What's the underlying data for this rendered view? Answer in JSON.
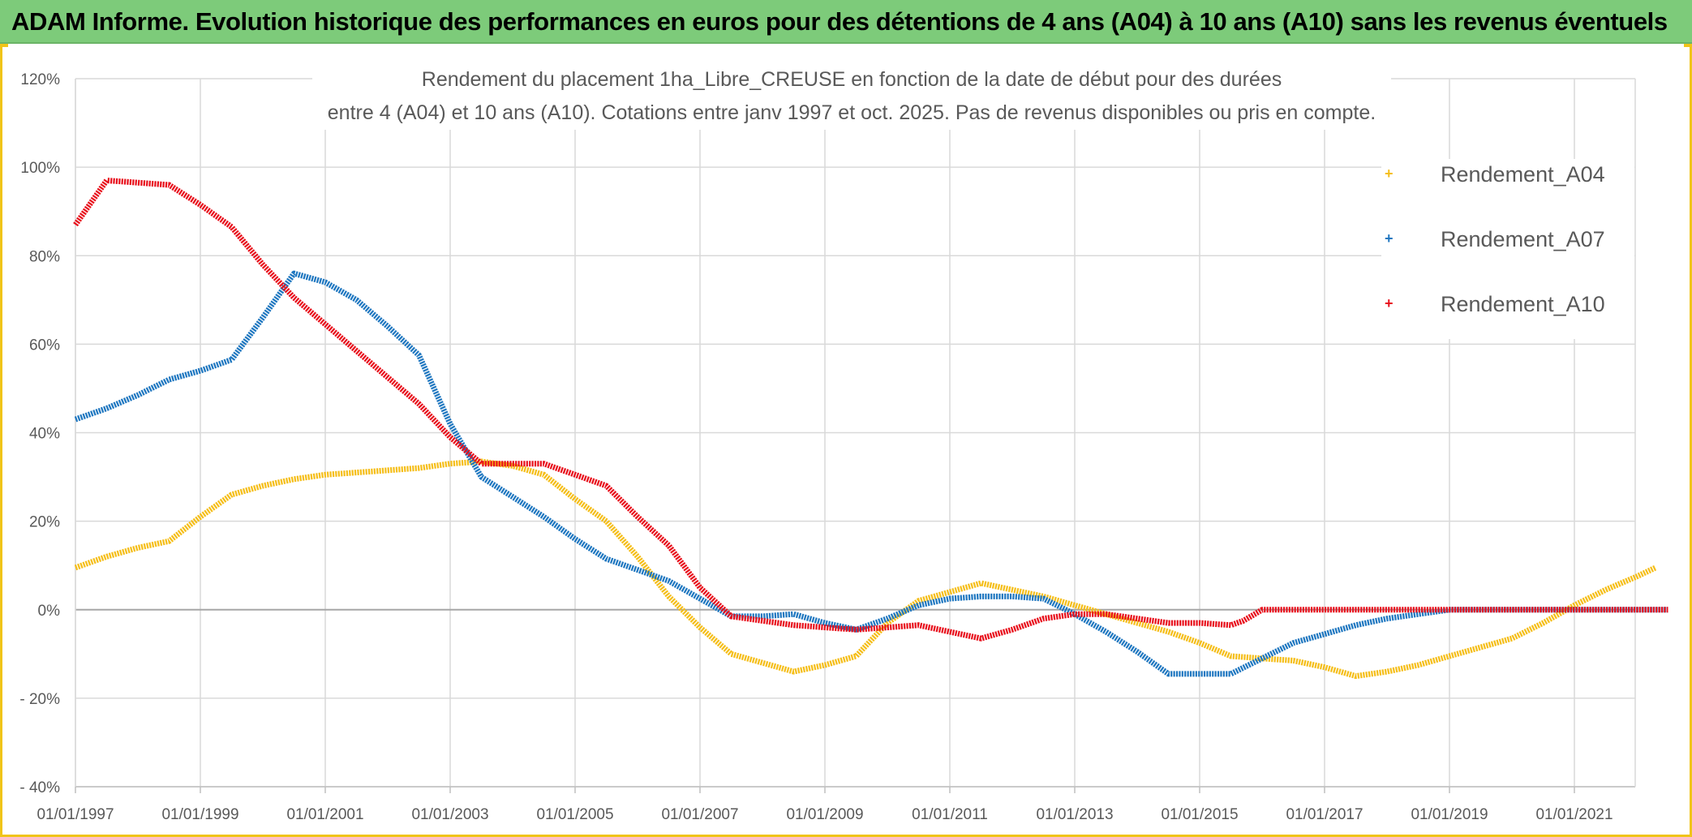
{
  "banner": {
    "title": "ADAM Informe. Evolution historique des performances en euros pour des détentions de 4 ans (A04) à 10 ans (A10) sans les revenus éventuels"
  },
  "chart_data": {
    "type": "line",
    "title_line1": "Rendement du placement 1ha_Libre_CREUSE en fonction de la date de début pour des durées",
    "title_line2": "entre 4 (A04) et 10 ans (A10). Cotations entre janv 1997 et oct. 2025. Pas de revenus disponibles ou pris en compte.",
    "xlim": [
      1997.0,
      2022.5
    ],
    "ylim": [
      -40,
      120
    ],
    "y_ticks": [
      -40,
      -20,
      0,
      20,
      40,
      60,
      80,
      100,
      120
    ],
    "y_tick_labels": [
      "- 40%",
      "- 20%",
      "0%",
      "20%",
      "40%",
      "60%",
      "80%",
      "100%",
      "120%"
    ],
    "x_ticks": [
      1997,
      1999,
      2001,
      2003,
      2005,
      2007,
      2009,
      2011,
      2013,
      2015,
      2017,
      2019,
      2021
    ],
    "x_tick_labels": [
      "01/01/1997",
      "01/01/1999",
      "01/01/2001",
      "01/01/2003",
      "01/01/2005",
      "01/01/2007",
      "01/01/2009",
      "01/01/2011",
      "01/01/2013",
      "01/01/2015",
      "01/01/2017",
      "01/01/2019",
      "01/01/2021"
    ],
    "grid": true,
    "legend_position": "right",
    "series": [
      {
        "name": "Rendement_A04",
        "color": "#f5be19",
        "x": [
          1997.0,
          1997.5,
          1998.0,
          1998.5,
          1999.0,
          1999.5,
          2000.0,
          2000.5,
          2001.0,
          2001.5,
          2002.0,
          2002.5,
          2003.0,
          2003.5,
          2004.0,
          2004.5,
          2005.0,
          2005.5,
          2006.0,
          2006.5,
          2007.0,
          2007.5,
          2008.0,
          2008.5,
          2009.0,
          2009.5,
          2010.0,
          2010.5,
          2011.0,
          2011.5,
          2012.0,
          2012.5,
          2013.0,
          2013.5,
          2014.0,
          2014.5,
          2015.0,
          2015.5,
          2016.0,
          2016.5,
          2017.0,
          2017.5,
          2018.0,
          2018.5,
          2019.0,
          2019.5,
          2020.0,
          2020.5,
          2021.0,
          2021.5,
          2022.0,
          2022.3
        ],
        "y": [
          9.5,
          12,
          14,
          15.5,
          21,
          26,
          28,
          29.5,
          30.5,
          31,
          31.5,
          32,
          33,
          33.5,
          32.5,
          30.5,
          25,
          20,
          12,
          3,
          -4,
          -10,
          -12,
          -14,
          -12.5,
          -10.5,
          -3,
          2,
          4,
          6,
          4.5,
          3,
          1,
          -1,
          -3,
          -5,
          -7.5,
          -10.5,
          -11,
          -11.5,
          -13,
          -15,
          -14,
          -12.5,
          -10.5,
          -8.5,
          -6.5,
          -3,
          1,
          4.5,
          7.5,
          9.5
        ]
      },
      {
        "name": "Rendement_A07",
        "color": "#1f77c0",
        "x": [
          1997.0,
          1997.5,
          1998.0,
          1998.5,
          1999.0,
          1999.5,
          2000.0,
          2000.5,
          2001.0,
          2001.5,
          2002.0,
          2002.5,
          2003.0,
          2003.5,
          2004.0,
          2004.5,
          2005.0,
          2005.5,
          2006.0,
          2006.5,
          2007.0,
          2007.5,
          2008.0,
          2008.5,
          2009.0,
          2009.5,
          2010.0,
          2010.5,
          2011.0,
          2011.5,
          2012.0,
          2012.5,
          2013.0,
          2013.5,
          2014.0,
          2014.5,
          2015.0,
          2015.5,
          2016.0,
          2016.5,
          2017.0,
          2017.5,
          2018.0,
          2018.5,
          2019.0,
          2022.5
        ],
        "y": [
          43,
          45.5,
          48.5,
          52,
          54,
          56.5,
          66,
          76,
          74,
          70,
          64,
          57.5,
          42,
          30,
          25.5,
          21,
          16,
          11.5,
          9,
          6.5,
          2.5,
          -1.5,
          -1.5,
          -1,
          -3,
          -4.5,
          -2,
          1,
          2.5,
          3,
          3,
          2.5,
          -1,
          -5,
          -9.5,
          -14.5,
          -14.5,
          -14.5,
          -11,
          -7.5,
          -5.5,
          -3.5,
          -2,
          -1,
          0,
          0
        ]
      },
      {
        "name": "Rendement_A10",
        "color": "#e8101c",
        "x": [
          1997.0,
          1997.5,
          1998.0,
          1998.5,
          1999.0,
          1999.5,
          2000.0,
          2000.5,
          2001.0,
          2001.5,
          2002.0,
          2002.5,
          2003.0,
          2003.5,
          2004.0,
          2004.5,
          2005.0,
          2005.5,
          2006.0,
          2006.5,
          2007.0,
          2007.5,
          2008.0,
          2008.5,
          2009.0,
          2009.5,
          2010.0,
          2010.5,
          2011.0,
          2011.5,
          2012.0,
          2012.5,
          2013.0,
          2013.5,
          2014.0,
          2014.5,
          2015.0,
          2015.5,
          2015.6,
          2015.7,
          2016.0,
          2022.5
        ],
        "y": [
          87,
          97,
          96.5,
          96,
          91.5,
          86.5,
          78,
          70.5,
          64.5,
          58.5,
          52.5,
          46.5,
          39,
          33,
          33,
          33,
          30.5,
          28,
          21,
          14.5,
          5,
          -1.5,
          -2.5,
          -3.5,
          -4,
          -4.5,
          -4,
          -3.5,
          -5,
          -6.5,
          -4.5,
          -2,
          -1,
          -1,
          -2,
          -3,
          -3,
          -3.5,
          -3,
          -2.5,
          0,
          0
        ]
      }
    ]
  },
  "legend": {
    "items": [
      {
        "label": "Rendement_A04",
        "color": "#f5be19",
        "marker": "+"
      },
      {
        "label": "Rendement_A07",
        "color": "#1f77c0",
        "marker": "+"
      },
      {
        "label": "Rendement_A10",
        "color": "#e8101c",
        "marker": "+"
      }
    ]
  }
}
